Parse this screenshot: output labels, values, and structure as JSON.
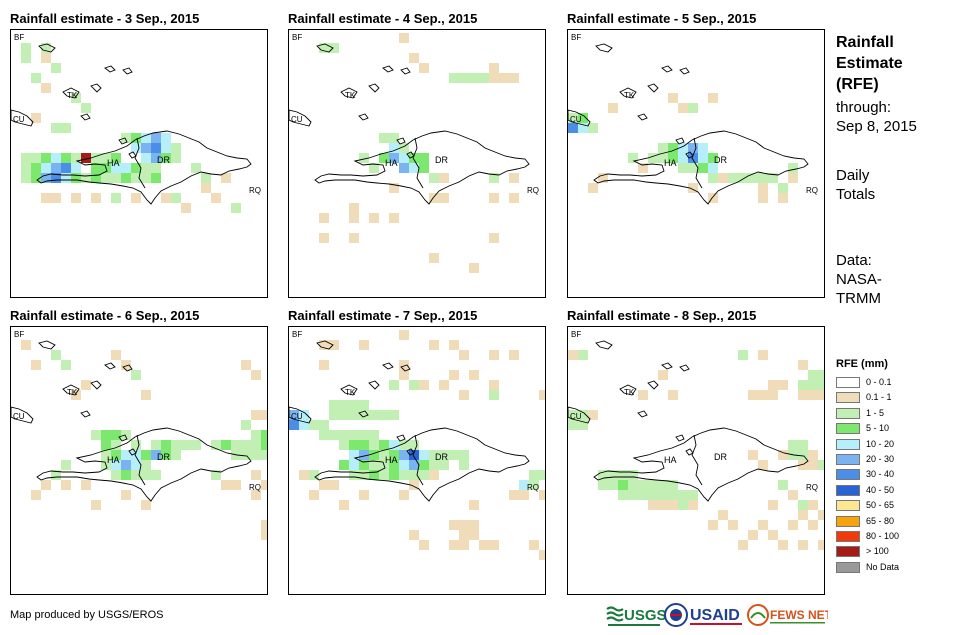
{
  "panels": [
    {
      "title": "Rainfall estimate - 3 Sep., 2015"
    },
    {
      "title": "Rainfall estimate - 4 Sep., 2015"
    },
    {
      "title": "Rainfall estimate - 5 Sep., 2015"
    },
    {
      "title": "Rainfall estimate - 6 Sep., 2015"
    },
    {
      "title": "Rainfall estimate - 7 Sep., 2015"
    },
    {
      "title": "Rainfall estimate - 8 Sep., 2015"
    }
  ],
  "country_labels": {
    "bf": "BF",
    "tk": "TK",
    "cu": "CU",
    "ha": "HA",
    "dr": "DR",
    "rq": "RQ"
  },
  "side": {
    "title_line1": "Rainfall",
    "title_line2": "Estimate",
    "title_line3": "(RFE)",
    "through_label": "through:",
    "through_date": "Sep 8, 2015",
    "totals_line1": "Daily",
    "totals_line2": "Totals",
    "data_line1": "Data:",
    "data_line2": "NASA-",
    "data_line3": "TRMM"
  },
  "legend": {
    "title": "RFE (mm)",
    "items": [
      {
        "label": "0 - 0.1",
        "color": "#ffffff"
      },
      {
        "label": "0.1 - 1",
        "color": "#f0dcb8"
      },
      {
        "label": "1 - 5",
        "color": "#c2f0b4"
      },
      {
        "label": "5 - 10",
        "color": "#7ce86e"
      },
      {
        "label": "10 - 20",
        "color": "#b6eefa"
      },
      {
        "label": "20 - 30",
        "color": "#7ab4f0"
      },
      {
        "label": "30 - 40",
        "color": "#4a8ee8"
      },
      {
        "label": "40 - 50",
        "color": "#2a62d8"
      },
      {
        "label": "50 - 65",
        "color": "#fce690"
      },
      {
        "label": "65 - 80",
        "color": "#f8a20e"
      },
      {
        "label": "80 - 100",
        "color": "#f03a0c"
      },
      {
        "label": "> 100",
        "color": "#a41c18"
      },
      {
        "label": "No Data",
        "color": "#999999"
      }
    ]
  },
  "credit": "Map produced by USGS/EROS",
  "logos": {
    "usgs": "USGS",
    "usaid": "USAID",
    "fewsnet": "FEWS NET"
  }
}
